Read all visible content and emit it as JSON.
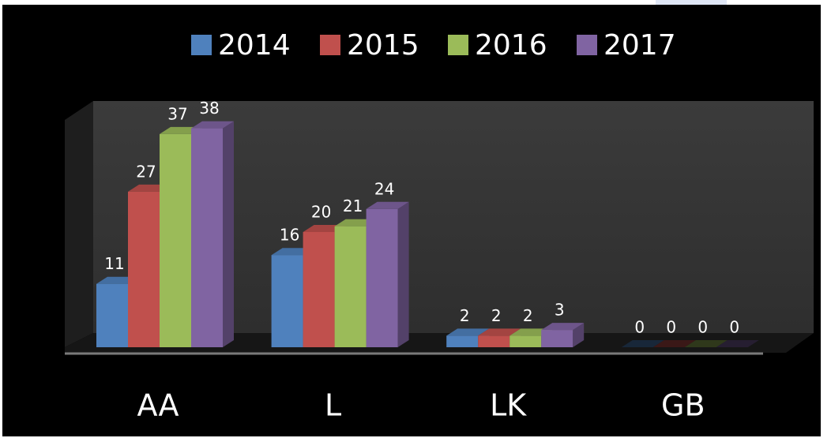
{
  "chart_data": {
    "type": "bar3d",
    "categories": [
      "AA",
      "L",
      "LK",
      "GB"
    ],
    "series": [
      {
        "name": "2014",
        "color": "#4f81bd",
        "values": [
          11,
          16,
          2,
          0
        ]
      },
      {
        "name": "2015",
        "color": "#c0504d",
        "values": [
          27,
          20,
          2,
          0
        ]
      },
      {
        "name": "2016",
        "color": "#9bbb59",
        "values": [
          37,
          21,
          2,
          0
        ]
      },
      {
        "name": "2017",
        "color": "#8064a2",
        "values": [
          38,
          24,
          3,
          0
        ]
      }
    ],
    "ylim": [
      0,
      40
    ],
    "legend": "top"
  }
}
